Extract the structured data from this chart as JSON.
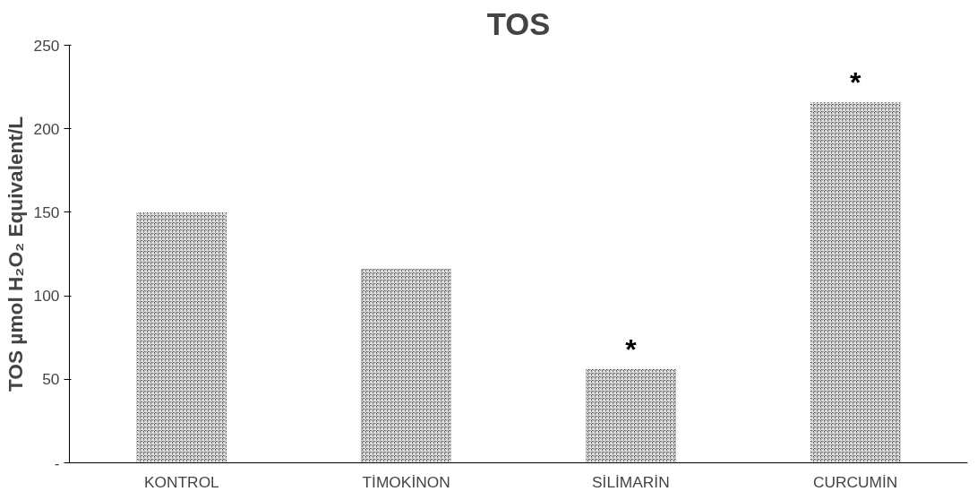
{
  "chart_data": {
    "type": "bar",
    "title": "TOS",
    "ylabel": "TOS µmol H₂O₂ Equivalent/L",
    "categories": [
      "KONTROL",
      "TİMOKİNON",
      "SİLİMARİN",
      "CURCUMİN"
    ],
    "values": [
      150,
      116,
      56,
      216
    ],
    "color": "#3a3a3a",
    "ylim": [
      0,
      250
    ],
    "yticks": [
      {
        "value": 0,
        "label": "-"
      },
      50,
      100,
      150,
      200,
      250
    ],
    "annotations": [
      {
        "text": "*",
        "x": "SİLİMARİN",
        "y": 56
      },
      {
        "text": "*",
        "x": "CURCUMİN",
        "y": 216
      }
    ],
    "grid": false
  }
}
